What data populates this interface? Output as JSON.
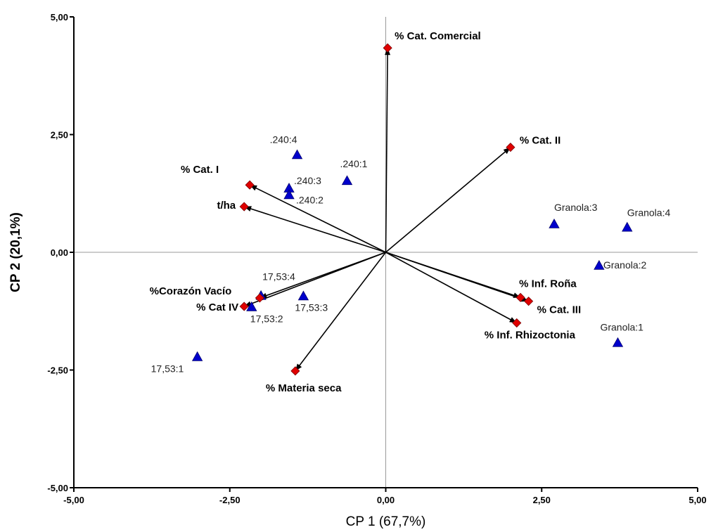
{
  "chart_data": {
    "type": "scatter",
    "subtype": "biplot",
    "xlabel": "CP 1 (67,7%)",
    "ylabel": "CP 2 (20,1%)",
    "xlim": [
      -5,
      5
    ],
    "ylim": [
      -5,
      5
    ],
    "x_ticks": [
      {
        "value": -5,
        "label": "-5,00"
      },
      {
        "value": -2.5,
        "label": "-2,50"
      },
      {
        "value": 0,
        "label": "0,00"
      },
      {
        "value": 2.5,
        "label": "2,50"
      },
      {
        "value": 5,
        "label": "5,00"
      }
    ],
    "y_ticks": [
      {
        "value": -5,
        "label": "-5,00"
      },
      {
        "value": -2.5,
        "label": "-2,50"
      },
      {
        "value": 0,
        "label": "0,00"
      },
      {
        "value": 2.5,
        "label": "2,50"
      },
      {
        "value": 5,
        "label": "5,00"
      }
    ],
    "grid": false,
    "zero_lines": true,
    "colors": {
      "observation": "#0000cc",
      "variable": "#e00000",
      "vector": "#000000",
      "zero_line": "#999999"
    },
    "observations": [
      {
        "label": ".240:4",
        "x": -1.42,
        "y": 2.07,
        "anchor": "end",
        "dx": 0,
        "dy": -17
      },
      {
        "label": ".240:1",
        "x": -0.62,
        "y": 1.52,
        "anchor": "start",
        "dx": -10,
        "dy": -19
      },
      {
        "label": ".240:3",
        "x": -1.55,
        "y": 1.36,
        "anchor": "start",
        "dx": 7,
        "dy": -6
      },
      {
        "label": ".240:2",
        "x": -1.55,
        "y": 1.22,
        "anchor": "start",
        "dx": 10,
        "dy": 12
      },
      {
        "label": "Granola:3",
        "x": 2.7,
        "y": 0.6,
        "anchor": "start",
        "dx": 0,
        "dy": -19
      },
      {
        "label": "Granola:4",
        "x": 3.87,
        "y": 0.53,
        "anchor": "start",
        "dx": 0,
        "dy": -16
      },
      {
        "label": "Granola:2",
        "x": 3.42,
        "y": -0.28,
        "anchor": "start",
        "dx": 6,
        "dy": 4
      },
      {
        "label": "Granola:1",
        "x": 3.72,
        "y": -1.92,
        "anchor": "start",
        "dx": -25,
        "dy": -17
      },
      {
        "label": "17,53:4",
        "x": -2.0,
        "y": -0.92,
        "anchor": "start",
        "dx": 2,
        "dy": -22
      },
      {
        "label": "17,53:3",
        "x": -1.32,
        "y": -0.93,
        "anchor": "start",
        "dx": -12,
        "dy": 21
      },
      {
        "label": "17,53:2",
        "x": -2.15,
        "y": -1.16,
        "anchor": "start",
        "dx": -2,
        "dy": 22
      },
      {
        "label": "17,53:1",
        "x": -3.02,
        "y": -2.22,
        "anchor": "start",
        "dx": -66,
        "dy": 22
      }
    ],
    "variables": [
      {
        "label": "% Cat. Comercial",
        "x": 0.03,
        "y": 4.34,
        "anchor": "start",
        "dx": 10,
        "dy": -12
      },
      {
        "label": "% Cat. II",
        "x": 2.0,
        "y": 2.23,
        "anchor": "start",
        "dx": 13,
        "dy": -5
      },
      {
        "label": "% Cat. I",
        "x": -2.18,
        "y": 1.43,
        "anchor": "end",
        "dx": -44,
        "dy": -17
      },
      {
        "label": "t/ha",
        "x": -2.27,
        "y": 0.97,
        "anchor": "end",
        "dx": -12,
        "dy": 3
      },
      {
        "label": "% Inf.  Roña",
        "x": 2.16,
        "y": -0.96,
        "anchor": "start",
        "dx": -2,
        "dy": -15
      },
      {
        "label": "% Cat. III",
        "x": 2.29,
        "y": -1.04,
        "anchor": "start",
        "dx": 12,
        "dy": 17
      },
      {
        "label": "% Inf. Rhizoctonia",
        "x": 2.1,
        "y": -1.5,
        "anchor": "start",
        "dx": -46,
        "dy": 22
      },
      {
        "label": "%Corazón Vacío",
        "x": -2.02,
        "y": -0.97,
        "anchor": "end",
        "dx": -40,
        "dy": -5
      },
      {
        "label": "% Cat IV",
        "x": -2.27,
        "y": -1.15,
        "anchor": "end",
        "dx": -8,
        "dy": 6
      },
      {
        "label": "% Materia seca",
        "x": -1.45,
        "y": -2.52,
        "anchor": "start",
        "dx": -42,
        "dy": 29
      }
    ]
  }
}
